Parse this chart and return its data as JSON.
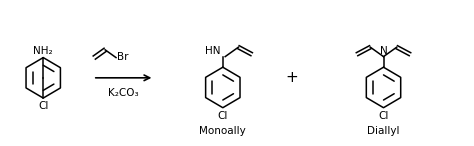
{
  "bg_color": "#ffffff",
  "line_color": "#000000",
  "figsize": [
    4.74,
    1.46
  ],
  "dpi": 100,
  "label_monoally": "Monoally",
  "label_diallyl": "Diallyl",
  "label_reagent": "K₂CO₃",
  "label_nh2": "NH₂",
  "label_cl": "Cl",
  "label_br": "Br",
  "label_hn": "HN",
  "label_n": "N",
  "label_plus": "+",
  "xlim": [
    0,
    10
  ],
  "ylim": [
    0,
    3
  ],
  "benzene_r": 0.42,
  "lw": 1.1
}
